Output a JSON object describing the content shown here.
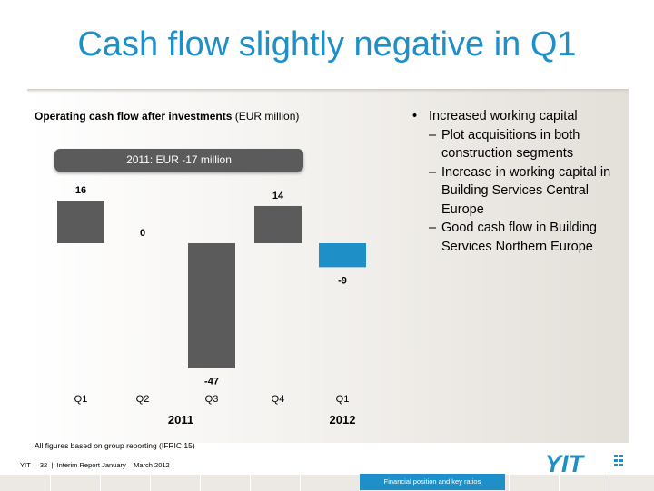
{
  "slide": {
    "title": "Cash flow slightly negative in Q1"
  },
  "chart_data": {
    "type": "bar",
    "title_bold": "Operating cash flow after investments",
    "title_unit": "(EUR million)",
    "banner": "2011: EUR -17 million",
    "categories": [
      "Q1",
      "Q2",
      "Q3",
      "Q4",
      "Q1"
    ],
    "values": [
      16,
      0,
      -47,
      14,
      -9
    ],
    "value_labels": [
      "16",
      "0",
      "-47",
      "14",
      "-9"
    ],
    "groups": [
      {
        "label": "2011",
        "category_indices": [
          0,
          1,
          2,
          3
        ]
      },
      {
        "label": "2012",
        "category_indices": [
          4
        ]
      }
    ],
    "colors": [
      "#5b5b5b",
      "#5b5b5b",
      "#5b5b5b",
      "#5b5b5b",
      "#1f8fc8"
    ],
    "xlabel": "",
    "ylabel": "",
    "ylim": [
      -47,
      16
    ],
    "grid": false
  },
  "bullets": {
    "main": "Increased working capital",
    "subs": [
      "Plot acquisitions in both construction segments",
      "Increase in working capital in Building Services Central Europe",
      "Good cash flow in Building Services Northern Europe"
    ]
  },
  "footnote": "All figures based on group reporting (IFRIC 15)",
  "footer": {
    "brand": "YIT",
    "page": "32",
    "report": "Interim Report January – March 2012",
    "section_tab": "Financial position and key ratios"
  },
  "logo": {
    "text": "YIT",
    "color": "#1f8fc8"
  }
}
